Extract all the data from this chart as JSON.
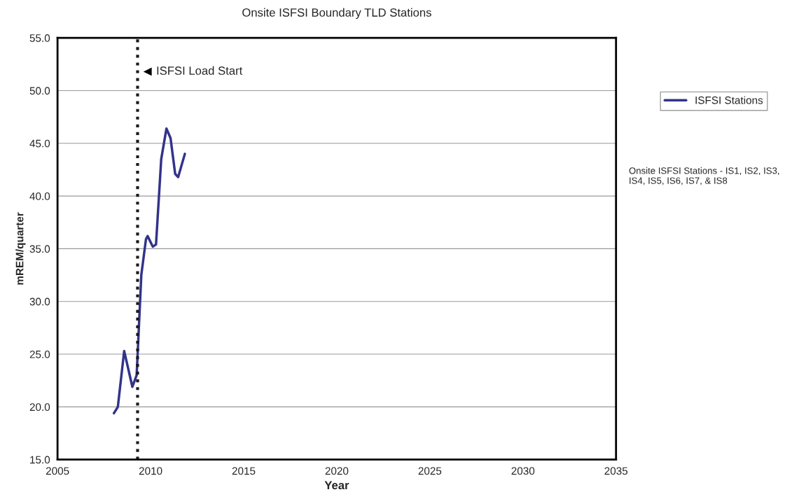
{
  "chart_data": {
    "type": "line",
    "title": "Onsite ISFSI Boundary TLD Stations",
    "xlabel": "Year",
    "ylabel": "mREM/quarter",
    "x": [
      2008.03,
      2008.24,
      2008.58,
      2009.02,
      2009.25,
      2009.5,
      2009.75,
      2009.84,
      2010.12,
      2010.29,
      2010.57,
      2010.85,
      2011.07,
      2011.32,
      2011.48,
      2011.84
    ],
    "series": [
      {
        "name": "ISFSI Stations",
        "color": "#33338a",
        "values": [
          19.4,
          20.0,
          25.3,
          21.9,
          23.0,
          32.5,
          35.9,
          36.2,
          35.2,
          35.4,
          43.5,
          46.4,
          45.5,
          42.1,
          41.8,
          44.0
        ]
      }
    ],
    "xlim": [
      2005,
      2035
    ],
    "xticks": [
      2005,
      2010,
      2015,
      2020,
      2025,
      2030,
      2035
    ],
    "ylim": [
      15,
      55
    ],
    "yticks": [
      {
        "value": 15,
        "label": "15.0"
      },
      {
        "value": 20,
        "label": "20.0"
      },
      {
        "value": 25,
        "label": "25.0"
      },
      {
        "value": 30,
        "label": "30.0"
      },
      {
        "value": 35,
        "label": "35.0"
      },
      {
        "value": 40,
        "label": "40.0"
      },
      {
        "value": 45,
        "label": "45.0"
      },
      {
        "value": 50,
        "label": "50.0"
      },
      {
        "value": 55,
        "label": "55.0"
      }
    ],
    "ref_lines": [
      {
        "axis": "x",
        "value": 2009.3,
        "label": "ISFSI Load Start",
        "color": "#1a1a1a",
        "line_style": "dotted"
      }
    ],
    "annotations": [
      "Onsite ISFSI Stations - IS1, IS2, IS3, IS4, IS5, IS6, IS7, & IS8"
    ],
    "grid": "y",
    "legend": "right",
    "marker": "none",
    "line_style": "solid"
  }
}
